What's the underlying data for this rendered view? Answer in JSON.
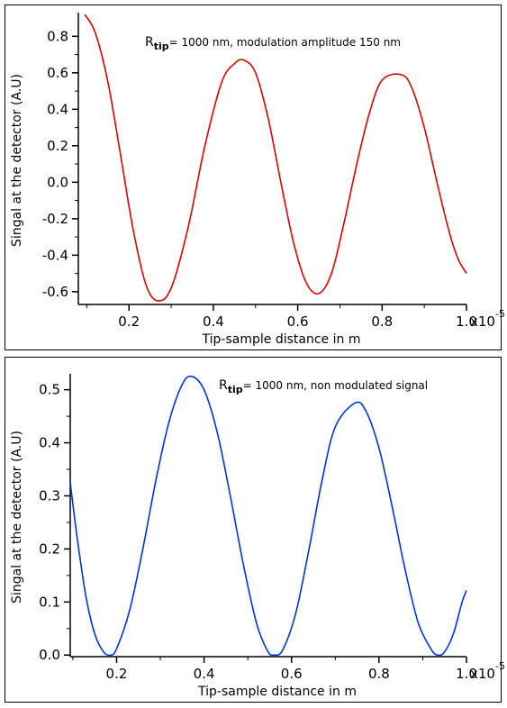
{
  "chart_data": [
    {
      "type": "line",
      "annotation": {
        "main": "R",
        "subscript": "tip",
        "rest": "= 1000 nm, modulation amplitude 150 nm"
      },
      "xlabel": "Tip-sample distance in m",
      "ylabel": "Singal at the detector (A.U)",
      "x_scale_label": {
        "base": "x10",
        "exponent": "-5"
      },
      "xlim": [
        0.08,
        1.0
      ],
      "ylim": [
        -0.67,
        0.93
      ],
      "x_ticks": [
        0.2,
        0.4,
        0.6,
        0.8,
        1.0
      ],
      "x_tick_labels": [
        "0.2",
        "0.4",
        "0.6",
        "0.8",
        "1.0"
      ],
      "y_ticks": [
        -0.6,
        -0.4,
        -0.2,
        0.0,
        0.2,
        0.4,
        0.6,
        0.8
      ],
      "y_tick_labels": [
        "-0.6",
        "-0.4",
        "-0.2",
        "0.0",
        "0.2",
        "0.4",
        "0.6",
        "0.8"
      ],
      "series": [
        {
          "color": "#dd0000",
          "x": [
            0.095,
            0.12,
            0.15,
            0.18,
            0.21,
            0.24,
            0.268,
            0.3,
            0.34,
            0.38,
            0.42,
            0.45,
            0.472,
            0.5,
            0.53,
            0.56,
            0.59,
            0.62,
            0.65,
            0.68,
            0.71,
            0.74,
            0.77,
            0.8,
            0.845,
            0.87,
            0.9,
            0.93,
            0.96,
            0.98,
            1.0
          ],
          "y": [
            0.92,
            0.82,
            0.55,
            0.15,
            -0.26,
            -0.56,
            -0.65,
            -0.58,
            -0.25,
            0.2,
            0.55,
            0.65,
            0.67,
            0.6,
            0.35,
            0.0,
            -0.33,
            -0.55,
            -0.61,
            -0.5,
            -0.22,
            0.1,
            0.38,
            0.56,
            0.59,
            0.52,
            0.3,
            0.0,
            -0.28,
            -0.42,
            -0.5
          ]
        }
      ]
    },
    {
      "type": "line",
      "annotation": {
        "main": "R",
        "subscript": "tip",
        "rest": "= 1000 nm, non modulated signal"
      },
      "xlabel": "Tip-sample distance in m",
      "ylabel": "Singal at the detector (A.U)",
      "x_scale_label": {
        "base": "x10",
        "exponent": "-5"
      },
      "xlim": [
        0.094,
        1.0
      ],
      "ylim": [
        -0.003,
        0.53
      ],
      "x_ticks": [
        0.2,
        0.4,
        0.6,
        0.8,
        1.0
      ],
      "x_tick_labels": [
        "0.2",
        "0.4",
        "0.6",
        "0.8",
        "1.0"
      ],
      "y_ticks": [
        0.0,
        0.1,
        0.2,
        0.3,
        0.4,
        0.5
      ],
      "y_tick_labels": [
        "0.0",
        "0.1",
        "0.2",
        "0.3",
        "0.4",
        "0.5"
      ],
      "series": [
        {
          "color": "#0033dd",
          "x": [
            0.094,
            0.11,
            0.13,
            0.15,
            0.17,
            0.186,
            0.2,
            0.23,
            0.26,
            0.29,
            0.32,
            0.35,
            0.372,
            0.4,
            0.43,
            0.46,
            0.49,
            0.52,
            0.545,
            0.56,
            0.58,
            0.61,
            0.64,
            0.67,
            0.7,
            0.745,
            0.77,
            0.8,
            0.83,
            0.86,
            0.89,
            0.92,
            0.935,
            0.95,
            0.97,
            0.99,
            1.0
          ],
          "y": [
            0.325,
            0.22,
            0.11,
            0.04,
            0.006,
            0.0,
            0.012,
            0.085,
            0.2,
            0.33,
            0.44,
            0.51,
            0.525,
            0.5,
            0.42,
            0.3,
            0.17,
            0.06,
            0.008,
            0.0,
            0.01,
            0.08,
            0.2,
            0.33,
            0.43,
            0.475,
            0.46,
            0.39,
            0.28,
            0.16,
            0.06,
            0.01,
            0.0,
            0.006,
            0.04,
            0.1,
            0.122
          ]
        }
      ]
    }
  ]
}
